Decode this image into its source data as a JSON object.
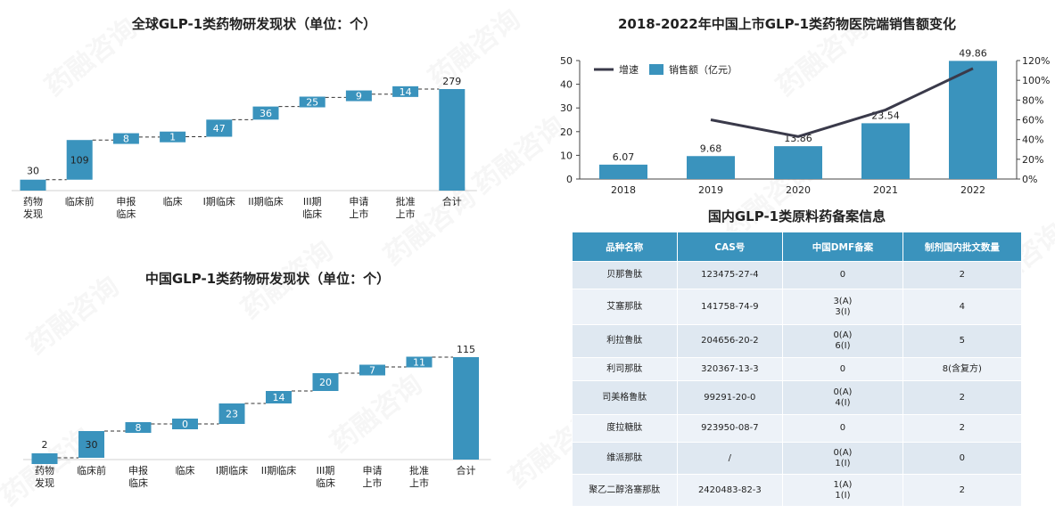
{
  "watermark": "药融咨询",
  "chart_data": [
    {
      "id": "global",
      "type": "waterfall",
      "title": "全球GLP-1类药物研发现状（单位：个）",
      "categories": [
        "药物发现",
        "临床前",
        "申报临床",
        "临床",
        "I期临床",
        "II期临床",
        "III期临床",
        "申请上市",
        "批准上市",
        "合计"
      ],
      "values": [
        30,
        109,
        8,
        1,
        47,
        36,
        25,
        9,
        14,
        279
      ],
      "total": 279
    },
    {
      "id": "china",
      "type": "waterfall",
      "title": "中国GLP-1类药物研发现状（单位：个）",
      "categories": [
        "药物发现",
        "临床前",
        "申报临床",
        "临床",
        "I期临床",
        "II期临床",
        "III期临床",
        "申请上市",
        "批准上市",
        "合计"
      ],
      "values": [
        2,
        30,
        8,
        0,
        23,
        14,
        20,
        7,
        11,
        115
      ],
      "total": 115
    },
    {
      "id": "sales",
      "type": "bar+line",
      "title": "2018-2022年中国上市GLP-1类药物医院端销售额变化",
      "categories": [
        "2018",
        "2019",
        "2020",
        "2021",
        "2022"
      ],
      "series": [
        {
          "name": "销售额（亿元）",
          "type": "bar",
          "values": [
            6.07,
            9.68,
            13.86,
            23.54,
            49.86
          ]
        },
        {
          "name": "增速",
          "type": "line",
          "axis": "right",
          "values": [
            null,
            60,
            43,
            70,
            112
          ]
        }
      ],
      "y_left": {
        "range": [
          0,
          50
        ],
        "ticks": [
          "0",
          "10",
          "20",
          "30",
          "40",
          "50"
        ]
      },
      "y_right": {
        "range": [
          0,
          120
        ],
        "ticks": [
          "0%",
          "20%",
          "40%",
          "60%",
          "80%",
          "100%",
          "120%"
        ]
      },
      "legend_position": "top-left",
      "bar_color": "#3a93bd",
      "line_color": "#3a3a4a"
    }
  ],
  "table": {
    "title": "国内GLP-1类原料药备案信息",
    "headers": [
      "品种名称",
      "CAS号",
      "中国DMF备案",
      "制剂国内批文数量"
    ],
    "rows": [
      {
        "name": "贝那鲁肽",
        "cas": "123475-27-4",
        "dmf": [
          "0"
        ],
        "count": "2"
      },
      {
        "name": "艾塞那肽",
        "cas": "141758-74-9",
        "dmf": [
          "3(A)",
          "3(I)"
        ],
        "count": "4"
      },
      {
        "name": "利拉鲁肽",
        "cas": "204656-20-2",
        "dmf": [
          "0(A)",
          "6(I)"
        ],
        "count": "5"
      },
      {
        "name": "利司那肽",
        "cas": "320367-13-3",
        "dmf": [
          "0"
        ],
        "count": "8(含复方)"
      },
      {
        "name": "司美格鲁肽",
        "cas": "99291-20-0",
        "dmf": [
          "0(A)",
          "4(I)"
        ],
        "count": "2"
      },
      {
        "name": "度拉糖肽",
        "cas": "923950-08-7",
        "dmf": [
          "0"
        ],
        "count": "2"
      },
      {
        "name": "维派那肽",
        "cas": "/",
        "dmf": [
          "0(A)",
          "1(I)"
        ],
        "count": "0"
      },
      {
        "name": "聚乙二醇洛塞那肽",
        "cas": "2420483-82-3",
        "dmf": [
          "1(A)",
          "1(I)"
        ],
        "count": "2"
      }
    ]
  }
}
